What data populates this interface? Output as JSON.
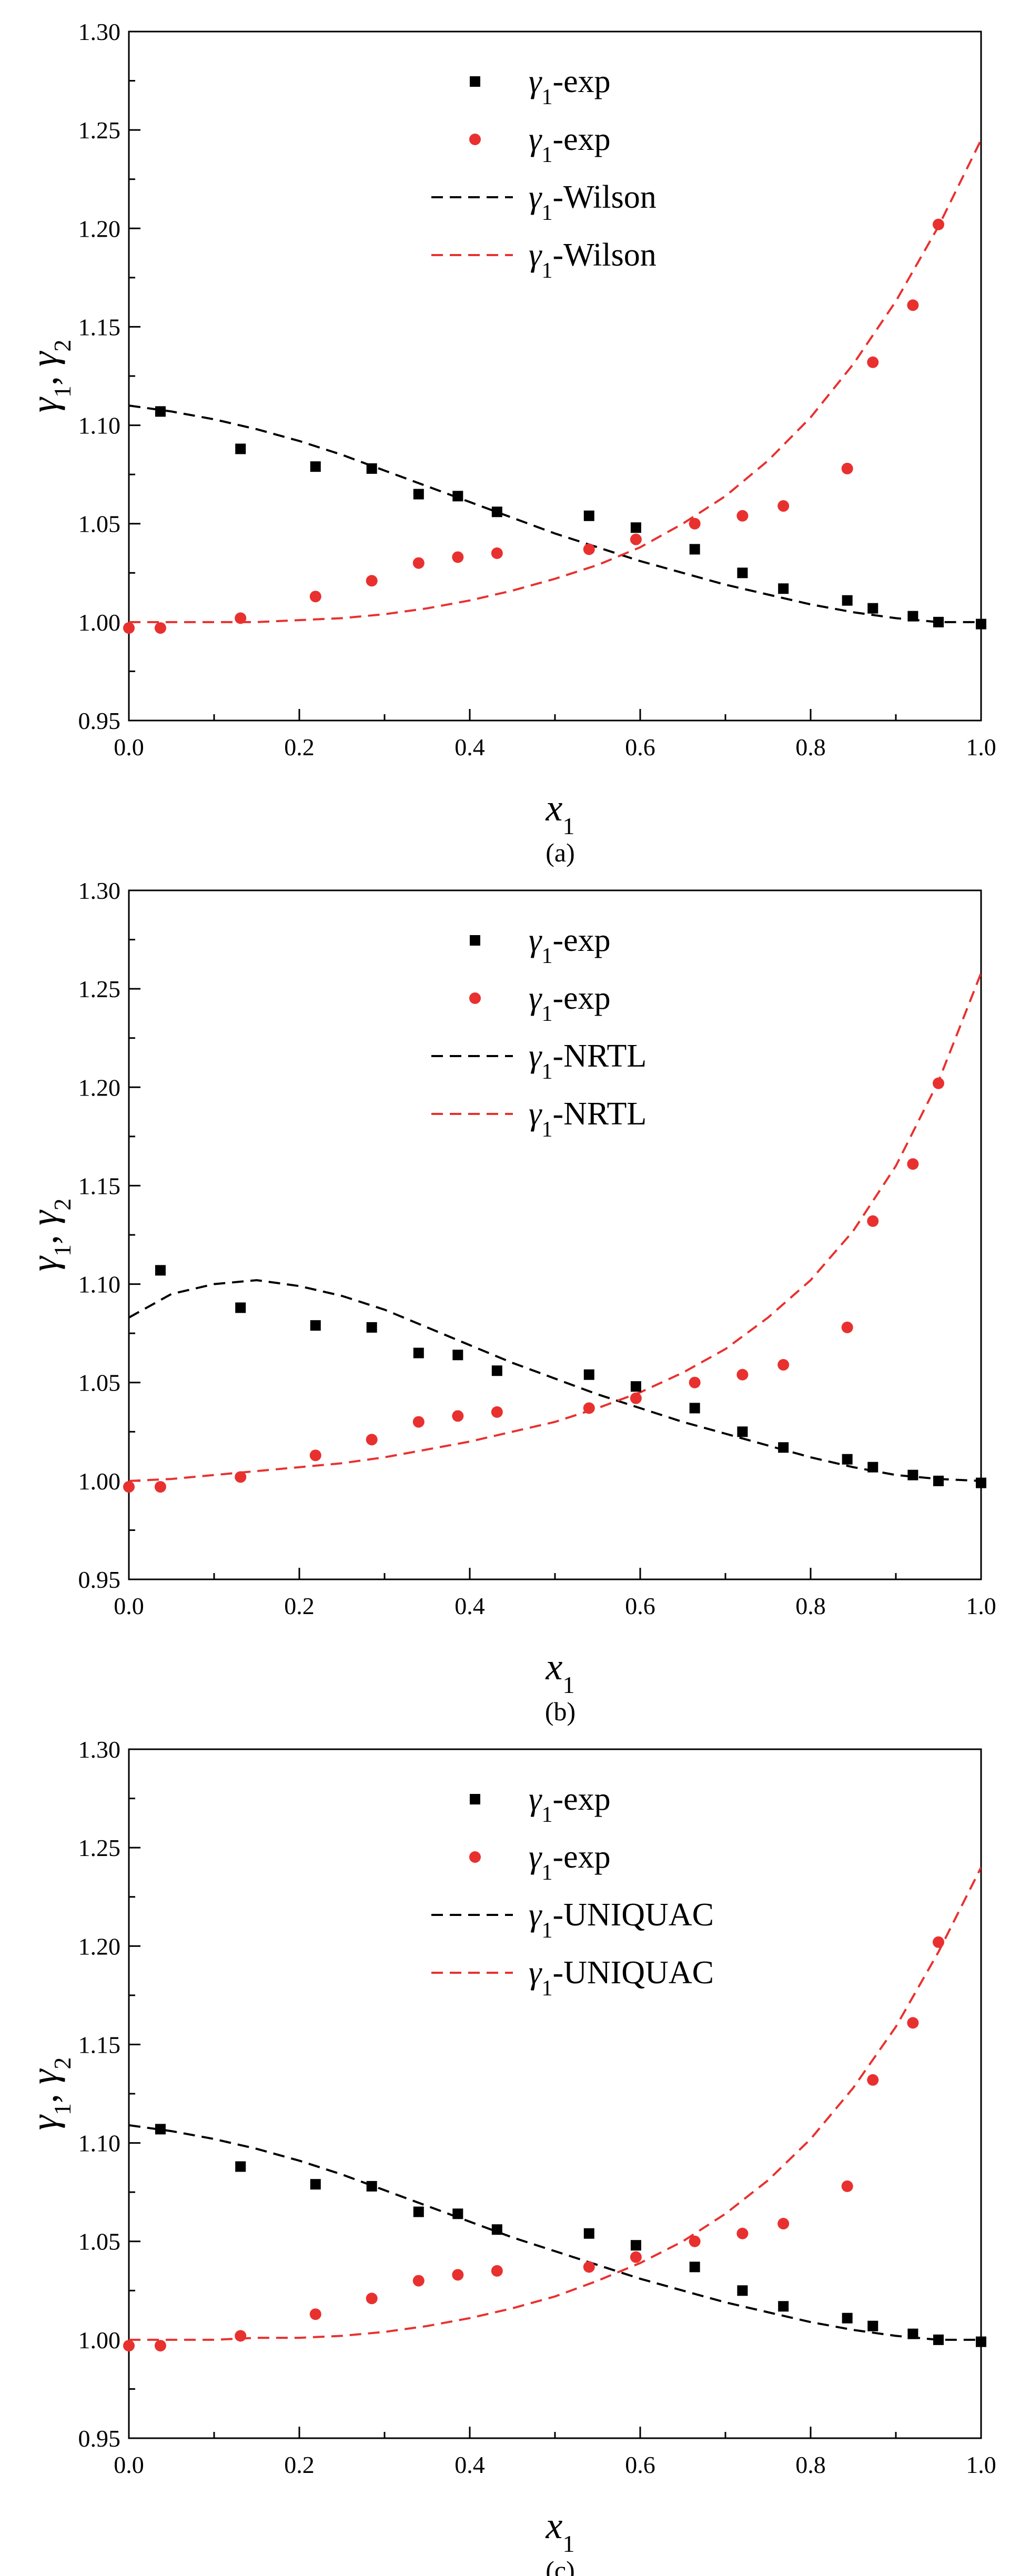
{
  "chart_data": [
    {
      "type": "scatter",
      "caption": "(a)",
      "xlabel": "x",
      "xlabel_sub": "1",
      "ylabel": "γ1, γ2",
      "xlim": [
        0.0,
        1.0
      ],
      "ylim": [
        0.95,
        1.3
      ],
      "xticks": [
        "0.0",
        "0.2",
        "0.4",
        "0.6",
        "0.8",
        "1.0"
      ],
      "yticks": [
        "0.95",
        "1.00",
        "1.05",
        "1.10",
        "1.15",
        "1.20",
        "1.25",
        "1.30"
      ],
      "legend_position": "top-center",
      "series": [
        {
          "name": "exp",
          "label_symbol": "γ",
          "label_sub": "1",
          "label_text": "-exp",
          "kind": "square-marker",
          "color": "#000000",
          "x": [
            0.037,
            0.131,
            0.219,
            0.285,
            0.34,
            0.386,
            0.432,
            0.54,
            0.595,
            0.664,
            0.72,
            0.768,
            0.843,
            0.873,
            0.92,
            0.95,
            1.0
          ],
          "y": [
            1.107,
            1.088,
            1.079,
            1.078,
            1.065,
            1.064,
            1.056,
            1.054,
            1.048,
            1.037,
            1.025,
            1.017,
            1.011,
            1.007,
            1.003,
            1.0,
            0.999
          ]
        },
        {
          "name": "exp",
          "label_symbol": "γ",
          "label_sub": "1",
          "label_text": "-exp",
          "kind": "circle-marker",
          "color": "#e8312f",
          "x": [
            0.0,
            0.037,
            0.131,
            0.219,
            0.285,
            0.34,
            0.386,
            0.432,
            0.54,
            0.595,
            0.664,
            0.72,
            0.768,
            0.843,
            0.873,
            0.92,
            0.95
          ],
          "y": [
            0.997,
            0.997,
            1.002,
            1.013,
            1.021,
            1.03,
            1.033,
            1.035,
            1.037,
            1.042,
            1.05,
            1.054,
            1.059,
            1.078,
            1.132,
            1.161,
            1.202
          ]
        },
        {
          "name": "Wilson",
          "label_symbol": "γ",
          "label_sub": "1",
          "label_text": "-Wilson",
          "kind": "dashed-line",
          "color": "#000000",
          "x": [
            0.0,
            0.05,
            0.1,
            0.15,
            0.2,
            0.25,
            0.3,
            0.35,
            0.4,
            0.45,
            0.5,
            0.55,
            0.6,
            0.65,
            0.7,
            0.75,
            0.8,
            0.85,
            0.9,
            0.95,
            1.0
          ],
          "y": [
            1.11,
            1.107,
            1.103,
            1.098,
            1.092,
            1.085,
            1.077,
            1.069,
            1.061,
            1.053,
            1.045,
            1.038,
            1.031,
            1.025,
            1.019,
            1.014,
            1.009,
            1.005,
            1.002,
            1.0,
            1.0
          ]
        },
        {
          "name": "Wilson",
          "label_symbol": "γ",
          "label_sub": "1",
          "label_text": "-Wilson",
          "kind": "dashed-line",
          "color": "#e8312f",
          "x": [
            0.0,
            0.05,
            0.1,
            0.15,
            0.2,
            0.25,
            0.3,
            0.35,
            0.4,
            0.45,
            0.5,
            0.55,
            0.6,
            0.65,
            0.7,
            0.75,
            0.8,
            0.85,
            0.9,
            0.95,
            1.0
          ],
          "y": [
            1.0,
            1.0,
            1.0,
            1.0,
            1.001,
            1.002,
            1.004,
            1.007,
            1.011,
            1.016,
            1.022,
            1.029,
            1.038,
            1.05,
            1.064,
            1.082,
            1.104,
            1.131,
            1.163,
            1.201,
            1.245
          ]
        }
      ]
    },
    {
      "type": "scatter",
      "caption": "(b)",
      "xlabel": "x",
      "xlabel_sub": "1",
      "ylabel": "γ1, γ2",
      "xlim": [
        0.0,
        1.0
      ],
      "ylim": [
        0.95,
        1.3
      ],
      "xticks": [
        "0.0",
        "0.2",
        "0.4",
        "0.6",
        "0.8",
        "1.0"
      ],
      "yticks": [
        "0.95",
        "1.00",
        "1.05",
        "1.10",
        "1.15",
        "1.20",
        "1.25",
        "1.30"
      ],
      "legend_position": "top-center",
      "series": [
        {
          "name": "exp",
          "label_symbol": "γ",
          "label_sub": "1",
          "label_text": "-exp",
          "kind": "square-marker",
          "color": "#000000",
          "x": [
            0.037,
            0.131,
            0.219,
            0.285,
            0.34,
            0.386,
            0.432,
            0.54,
            0.595,
            0.664,
            0.72,
            0.768,
            0.843,
            0.873,
            0.92,
            0.95,
            1.0
          ],
          "y": [
            1.107,
            1.088,
            1.079,
            1.078,
            1.065,
            1.064,
            1.056,
            1.054,
            1.048,
            1.037,
            1.025,
            1.017,
            1.011,
            1.007,
            1.003,
            1.0,
            0.999
          ]
        },
        {
          "name": "exp",
          "label_symbol": "γ",
          "label_sub": "1",
          "label_text": "-exp",
          "kind": "circle-marker",
          "color": "#e8312f",
          "x": [
            0.0,
            0.037,
            0.131,
            0.219,
            0.285,
            0.34,
            0.386,
            0.432,
            0.54,
            0.595,
            0.664,
            0.72,
            0.768,
            0.843,
            0.873,
            0.92,
            0.95
          ],
          "y": [
            0.997,
            0.997,
            1.002,
            1.013,
            1.021,
            1.03,
            1.033,
            1.035,
            1.037,
            1.042,
            1.05,
            1.054,
            1.059,
            1.078,
            1.132,
            1.161,
            1.202
          ]
        },
        {
          "name": "NRTL",
          "label_symbol": "γ",
          "label_sub": "1",
          "label_text": "-NRTL",
          "kind": "dashed-line",
          "color": "#000000",
          "x": [
            0.0,
            0.05,
            0.1,
            0.15,
            0.2,
            0.25,
            0.3,
            0.35,
            0.4,
            0.45,
            0.5,
            0.55,
            0.6,
            0.65,
            0.7,
            0.75,
            0.8,
            0.85,
            0.9,
            0.95,
            1.0
          ],
          "y": [
            1.083,
            1.095,
            1.1,
            1.102,
            1.099,
            1.094,
            1.087,
            1.078,
            1.069,
            1.06,
            1.052,
            1.044,
            1.037,
            1.03,
            1.024,
            1.018,
            1.012,
            1.007,
            1.003,
            1.001,
            1.0
          ]
        },
        {
          "name": "NRTL",
          "label_symbol": "γ",
          "label_sub": "1",
          "label_text": "-NRTL",
          "kind": "dashed-line",
          "color": "#e8312f",
          "x": [
            0.0,
            0.05,
            0.1,
            0.15,
            0.2,
            0.25,
            0.3,
            0.35,
            0.4,
            0.45,
            0.5,
            0.55,
            0.6,
            0.65,
            0.7,
            0.75,
            0.8,
            0.85,
            0.9,
            0.95,
            1.0
          ],
          "y": [
            1.0,
            1.001,
            1.003,
            1.005,
            1.007,
            1.009,
            1.012,
            1.016,
            1.02,
            1.025,
            1.03,
            1.037,
            1.045,
            1.055,
            1.067,
            1.083,
            1.102,
            1.127,
            1.16,
            1.203,
            1.258
          ]
        }
      ]
    },
    {
      "type": "scatter",
      "caption": "(c)",
      "xlabel": "x",
      "xlabel_sub": "1",
      "ylabel": "γ1, γ2",
      "xlim": [
        0.0,
        1.0
      ],
      "ylim": [
        0.95,
        1.3
      ],
      "xticks": [
        "0.0",
        "0.2",
        "0.4",
        "0.6",
        "0.8",
        "1.0"
      ],
      "yticks": [
        "0.95",
        "1.00",
        "1.05",
        "1.10",
        "1.15",
        "1.20",
        "1.25",
        "1.30"
      ],
      "legend_position": "top-center",
      "series": [
        {
          "name": "exp",
          "label_symbol": "γ",
          "label_sub": "1",
          "label_text": "-exp",
          "kind": "square-marker",
          "color": "#000000",
          "x": [
            0.037,
            0.131,
            0.219,
            0.285,
            0.34,
            0.386,
            0.432,
            0.54,
            0.595,
            0.664,
            0.72,
            0.768,
            0.843,
            0.873,
            0.92,
            0.95,
            1.0
          ],
          "y": [
            1.107,
            1.088,
            1.079,
            1.078,
            1.065,
            1.064,
            1.056,
            1.054,
            1.048,
            1.037,
            1.025,
            1.017,
            1.011,
            1.007,
            1.003,
            1.0,
            0.999
          ]
        },
        {
          "name": "exp",
          "label_symbol": "γ",
          "label_sub": "1",
          "label_text": "-exp",
          "kind": "circle-marker",
          "color": "#e8312f",
          "x": [
            0.0,
            0.037,
            0.131,
            0.219,
            0.285,
            0.34,
            0.386,
            0.432,
            0.54,
            0.595,
            0.664,
            0.72,
            0.768,
            0.843,
            0.873,
            0.92,
            0.95
          ],
          "y": [
            0.997,
            0.997,
            1.002,
            1.013,
            1.021,
            1.03,
            1.033,
            1.035,
            1.037,
            1.042,
            1.05,
            1.054,
            1.059,
            1.078,
            1.132,
            1.161,
            1.202
          ]
        },
        {
          "name": "UNIQUAC",
          "label_symbol": "γ",
          "label_sub": "1",
          "label_text": "-UNIQUAC",
          "kind": "dashed-line",
          "color": "#000000",
          "x": [
            0.0,
            0.05,
            0.1,
            0.15,
            0.2,
            0.25,
            0.3,
            0.35,
            0.4,
            0.45,
            0.5,
            0.55,
            0.6,
            0.65,
            0.7,
            0.75,
            0.8,
            0.85,
            0.9,
            0.95,
            1.0
          ],
          "y": [
            1.109,
            1.106,
            1.102,
            1.097,
            1.091,
            1.084,
            1.076,
            1.068,
            1.06,
            1.052,
            1.045,
            1.038,
            1.031,
            1.025,
            1.019,
            1.014,
            1.009,
            1.005,
            1.002,
            1.0,
            1.0
          ]
        },
        {
          "name": "UNIQUAC",
          "label_symbol": "γ",
          "label_sub": "1",
          "label_text": "-UNIQUAC",
          "kind": "dashed-line",
          "color": "#e8312f",
          "x": [
            0.0,
            0.05,
            0.1,
            0.15,
            0.2,
            0.25,
            0.3,
            0.35,
            0.4,
            0.45,
            0.5,
            0.55,
            0.6,
            0.65,
            0.7,
            0.75,
            0.8,
            0.85,
            0.9,
            0.95,
            1.0
          ],
          "y": [
            1.0,
            1.0,
            1.0,
            1.001,
            1.001,
            1.002,
            1.004,
            1.007,
            1.011,
            1.016,
            1.022,
            1.03,
            1.039,
            1.05,
            1.064,
            1.081,
            1.102,
            1.128,
            1.159,
            1.197,
            1.24
          ]
        }
      ]
    }
  ]
}
